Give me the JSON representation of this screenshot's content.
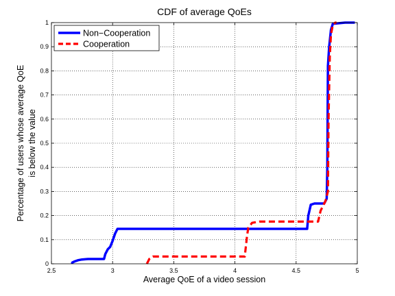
{
  "chart_data": {
    "type": "line",
    "title": "CDF of average QoEs",
    "xlabel": "Average QoE of a video session",
    "ylabel_lines": [
      "Percentage of users whose average QoE",
      "is below the value"
    ],
    "xlim": [
      2.5,
      5
    ],
    "ylim": [
      0,
      1
    ],
    "xticks": [
      "2.5",
      "3",
      "3.5",
      "4",
      "4.5",
      "5"
    ],
    "yticks": [
      "0",
      "0.1",
      "0.2",
      "0.3",
      "0.4",
      "0.5",
      "0.6",
      "0.7",
      "0.8",
      "0.9",
      "1"
    ],
    "grid": true,
    "legend_position": "top-left",
    "series": [
      {
        "name": "Non−Cooperation",
        "color": "#0000ff",
        "style": "solid",
        "points": [
          [
            2.67,
            0.0
          ],
          [
            2.67,
            0.005
          ],
          [
            2.69,
            0.01
          ],
          [
            2.72,
            0.015
          ],
          [
            2.75,
            0.018
          ],
          [
            2.8,
            0.02
          ],
          [
            2.93,
            0.02
          ],
          [
            2.94,
            0.04
          ],
          [
            2.96,
            0.06
          ],
          [
            2.98,
            0.07
          ],
          [
            3.0,
            0.095
          ],
          [
            3.02,
            0.125
          ],
          [
            3.04,
            0.145
          ],
          [
            3.1,
            0.145
          ],
          [
            3.5,
            0.145
          ],
          [
            4.0,
            0.145
          ],
          [
            4.5,
            0.145
          ],
          [
            4.59,
            0.145
          ],
          [
            4.6,
            0.2
          ],
          [
            4.62,
            0.245
          ],
          [
            4.65,
            0.25
          ],
          [
            4.73,
            0.25
          ],
          [
            4.75,
            0.27
          ],
          [
            4.755,
            0.4
          ],
          [
            4.76,
            0.82
          ],
          [
            4.77,
            0.9
          ],
          [
            4.785,
            0.97
          ],
          [
            4.8,
            0.995
          ],
          [
            4.9,
            1.0
          ],
          [
            4.98,
            1.0
          ]
        ]
      },
      {
        "name": "Cooperation",
        "color": "#ff0000",
        "style": "dashed",
        "points": [
          [
            3.28,
            0.0
          ],
          [
            3.3,
            0.02
          ],
          [
            3.33,
            0.03
          ],
          [
            3.5,
            0.03
          ],
          [
            3.8,
            0.03
          ],
          [
            4.08,
            0.03
          ],
          [
            4.1,
            0.12
          ],
          [
            4.11,
            0.15
          ],
          [
            4.14,
            0.17
          ],
          [
            4.2,
            0.175
          ],
          [
            4.5,
            0.175
          ],
          [
            4.68,
            0.175
          ],
          [
            4.7,
            0.22
          ],
          [
            4.72,
            0.24
          ],
          [
            4.74,
            0.26
          ],
          [
            4.76,
            0.3
          ],
          [
            4.765,
            0.6
          ],
          [
            4.775,
            0.86
          ],
          [
            4.785,
            0.95
          ],
          [
            4.8,
            0.99
          ],
          [
            4.82,
            1.0
          ],
          [
            4.83,
            1.0
          ]
        ]
      }
    ]
  },
  "colors": {
    "axis": "#000000",
    "grid": "#000000",
    "background": "#ffffff"
  }
}
